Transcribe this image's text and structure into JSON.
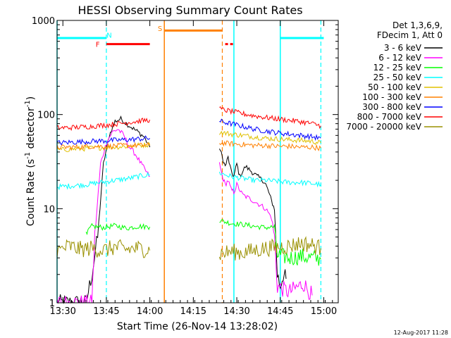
{
  "chart_data": {
    "type": "line",
    "title": "HESSI Observing Summary Count Rates",
    "xlabel": "Start Time (26-Nov-14 13:28:02)",
    "ylabel_main": "Count Rate (s",
    "ylabel_sup1": "-1",
    "ylabel_mid": " detector",
    "ylabel_sup2": "-1",
    "ylabel_end": ")",
    "x_start_minutes": 0,
    "x_end_minutes": 97,
    "x_ticks": [
      {
        "label": "13:30",
        "minutes": 2
      },
      {
        "label": "13:45",
        "minutes": 17
      },
      {
        "label": "14:00",
        "minutes": 32
      },
      {
        "label": "14:15",
        "minutes": 47
      },
      {
        "label": "14:30",
        "minutes": 62
      },
      {
        "label": "14:45",
        "minutes": 77
      },
      {
        "label": "15:00",
        "minutes": 92
      }
    ],
    "ylim": [
      1,
      1000
    ],
    "y_scale": "log",
    "y_ticks": [
      {
        "label": "1",
        "value": 1
      },
      {
        "label": "10",
        "value": 10
      },
      {
        "label": "100",
        "value": 100
      },
      {
        "label": "1000",
        "value": 1000
      }
    ],
    "legend_header": [
      "Det 1,3,6,9,",
      "FDecim 1, Att 0"
    ],
    "legend_position": "right",
    "series": [
      {
        "name": "3 - 6 keV",
        "color": "#000000",
        "segments": [
          [
            [
              0,
              1
            ],
            [
              10,
              1
            ],
            [
              12,
              2
            ],
            [
              14,
              5
            ],
            [
              16,
              30
            ],
            [
              18,
              60
            ],
            [
              20,
              85
            ],
            [
              22,
              90
            ],
            [
              24,
              80
            ],
            [
              26,
              72
            ],
            [
              28,
              65
            ],
            [
              30,
              58
            ],
            [
              32,
              45
            ]
          ],
          [
            [
              56,
              45
            ],
            [
              57,
              35
            ],
            [
              58,
              28
            ],
            [
              59,
              35
            ],
            [
              60,
              25
            ],
            [
              61,
              22
            ],
            [
              62,
              30
            ],
            [
              63,
              22
            ],
            [
              65,
              28
            ],
            [
              67,
              25
            ],
            [
              69,
              22
            ],
            [
              71,
              20
            ],
            [
              72,
              18
            ],
            [
              73,
              15
            ],
            [
              74,
              12
            ],
            [
              75,
              10
            ],
            [
              76,
              2
            ],
            [
              77,
              1.5
            ],
            [
              78,
              2
            ],
            [
              79,
              1.8
            ]
          ]
        ]
      },
      {
        "name": "6 - 12 keV",
        "color": "#ff00ff",
        "segments": [
          [
            [
              0,
              1
            ],
            [
              12,
              1
            ],
            [
              13,
              5
            ],
            [
              15,
              30
            ],
            [
              17,
              50
            ],
            [
              19,
              65
            ],
            [
              21,
              70
            ],
            [
              23,
              60
            ],
            [
              25,
              45
            ],
            [
              27,
              38
            ],
            [
              29,
              30
            ],
            [
              31,
              24
            ],
            [
              32,
              22
            ]
          ],
          [
            [
              56,
              30
            ],
            [
              57,
              22
            ],
            [
              58,
              18
            ],
            [
              59,
              20
            ],
            [
              60,
              16
            ],
            [
              61,
              15
            ],
            [
              62,
              18
            ],
            [
              64,
              14
            ],
            [
              66,
              13
            ],
            [
              68,
              12
            ],
            [
              70,
              11
            ],
            [
              72,
              10
            ],
            [
              74,
              8
            ],
            [
              75,
              5
            ],
            [
              76,
              1.5
            ],
            [
              80,
              1.3
            ],
            [
              85,
              1.6
            ],
            [
              88,
              1.2
            ]
          ]
        ]
      },
      {
        "name": "12 - 25 keV",
        "color": "#00ff00",
        "segments": [
          [
            [
              10,
              5
            ],
            [
              11,
              6
            ],
            [
              12,
              6.5
            ],
            [
              16,
              6.3
            ],
            [
              20,
              6.6
            ],
            [
              24,
              6.2
            ],
            [
              28,
              6.5
            ],
            [
              32,
              6.4
            ]
          ],
          [
            [
              56,
              7.5
            ],
            [
              60,
              7.0
            ],
            [
              64,
              6.8
            ],
            [
              68,
              6.5
            ],
            [
              72,
              6.3
            ],
            [
              75,
              6.4
            ],
            [
              76,
              3.2
            ],
            [
              80,
              3.0
            ],
            [
              84,
              3.1
            ],
            [
              88,
              3.0
            ],
            [
              91,
              2.9
            ]
          ]
        ]
      },
      {
        "name": "25 - 50 keV",
        "color": "#00ffff",
        "segments": [
          [
            [
              0,
              17
            ],
            [
              5,
              17.5
            ],
            [
              10,
              18
            ],
            [
              15,
              19
            ],
            [
              20,
              20
            ],
            [
              25,
              21
            ],
            [
              28,
              22
            ],
            [
              32,
              23
            ]
          ],
          [
            [
              56,
              24
            ],
            [
              60,
              22
            ],
            [
              64,
              21
            ],
            [
              68,
              20
            ],
            [
              72,
              20
            ],
            [
              76,
              19.5
            ],
            [
              80,
              19
            ],
            [
              84,
              19
            ],
            [
              88,
              18.5
            ],
            [
              91,
              18
            ]
          ]
        ]
      },
      {
        "name": "50 - 100 keV",
        "color": "#e0c000",
        "segments": [
          [
            [
              0,
              42
            ],
            [
              6,
              43
            ],
            [
              12,
              44
            ],
            [
              18,
              45
            ],
            [
              24,
              46
            ],
            [
              28,
              47
            ],
            [
              32,
              48
            ]
          ],
          [
            [
              56,
              65
            ],
            [
              60,
              62
            ],
            [
              64,
              60
            ],
            [
              68,
              58
            ],
            [
              72,
              56
            ],
            [
              76,
              55
            ],
            [
              80,
              54
            ],
            [
              84,
              53
            ],
            [
              88,
              52
            ],
            [
              91,
              50
            ]
          ]
        ]
      },
      {
        "name": "100 - 300 keV",
        "color": "#ff8000",
        "segments": [
          [
            [
              0,
              45
            ],
            [
              6,
              45
            ],
            [
              12,
              46
            ],
            [
              18,
              46
            ],
            [
              24,
              47
            ],
            [
              28,
              47
            ],
            [
              32,
              47
            ]
          ],
          [
            [
              56,
              50
            ],
            [
              60,
              49
            ],
            [
              64,
              48
            ],
            [
              68,
              47
            ],
            [
              72,
              47
            ],
            [
              76,
              46
            ],
            [
              80,
              46
            ],
            [
              84,
              45
            ],
            [
              88,
              45
            ],
            [
              91,
              44
            ]
          ]
        ]
      },
      {
        "name": "300 - 800 keV",
        "color": "#0000ff",
        "segments": [
          [
            [
              0,
              50
            ],
            [
              6,
              51
            ],
            [
              12,
              52
            ],
            [
              18,
              53
            ],
            [
              24,
              54
            ],
            [
              28,
              55
            ],
            [
              32,
              56
            ]
          ],
          [
            [
              56,
              85
            ],
            [
              60,
              80
            ],
            [
              64,
              75
            ],
            [
              68,
              70
            ],
            [
              72,
              67
            ],
            [
              76,
              64
            ],
            [
              80,
              62
            ],
            [
              84,
              60
            ],
            [
              88,
              58
            ],
            [
              91,
              56
            ]
          ]
        ]
      },
      {
        "name": "800 - 7000 keV",
        "color": "#ff0000",
        "segments": [
          [
            [
              0,
              72
            ],
            [
              6,
              73
            ],
            [
              12,
              75
            ],
            [
              18,
              78
            ],
            [
              24,
              82
            ],
            [
              28,
              85
            ],
            [
              32,
              88
            ]
          ],
          [
            [
              56,
              115
            ],
            [
              60,
              108
            ],
            [
              64,
              102
            ],
            [
              68,
              97
            ],
            [
              72,
              93
            ],
            [
              76,
              90
            ],
            [
              80,
              87
            ],
            [
              84,
              84
            ],
            [
              88,
              80
            ],
            [
              91,
              76
            ]
          ]
        ]
      },
      {
        "name": "7000 - 20000 keV",
        "color": "#9a9000",
        "segments": [
          [
            [
              0,
              3.5
            ],
            [
              4,
              4.0
            ],
            [
              8,
              3.7
            ],
            [
              12,
              3.8
            ],
            [
              16,
              3.6
            ],
            [
              20,
              3.9
            ],
            [
              24,
              3.7
            ],
            [
              28,
              3.8
            ],
            [
              32,
              3.6
            ]
          ],
          [
            [
              56,
              3.3
            ],
            [
              60,
              3.5
            ],
            [
              64,
              3.4
            ],
            [
              68,
              3.6
            ],
            [
              72,
              3.8
            ],
            [
              76,
              3.9
            ],
            [
              80,
              4.0
            ],
            [
              84,
              4.3
            ],
            [
              88,
              4.1
            ],
            [
              91,
              3.8
            ]
          ]
        ]
      }
    ],
    "night_markers": {
      "color": "#00ffff",
      "solid_x": [
        0,
        61,
        77
      ],
      "dashed_x": [
        17,
        91
      ]
    },
    "saa_markers": {
      "color": "#ff8000",
      "solid_x": [
        37
      ],
      "dashed_x": [
        57
      ]
    },
    "flags": [
      {
        "label": "N",
        "color": "#00ffff",
        "x_start": 0,
        "x_end": 17,
        "y": 650,
        "text_x": 18,
        "text_y": 700,
        "style": "solid"
      },
      {
        "label": "N",
        "color": "#00ffff",
        "x_start": 77,
        "x_end": 92,
        "y": 650,
        "text": "",
        "style": "solid"
      },
      {
        "label": "F",
        "color": "#ff0000",
        "x_start": 17,
        "x_end": 32,
        "y": 560,
        "text_x": 14,
        "text_y": 560,
        "style": "solid"
      },
      {
        "label": "",
        "color": "#ff0000",
        "x_start": 58,
        "x_end": 61,
        "y": 560,
        "style": "dash"
      },
      {
        "label": "S",
        "color": "#ff8000",
        "x_start": 37,
        "x_end": 57,
        "y": 780,
        "text_x": 35.5,
        "text_y": 830,
        "style": "solid"
      }
    ]
  },
  "footer": {
    "timestamp": "12-Aug-2017 11:28"
  }
}
